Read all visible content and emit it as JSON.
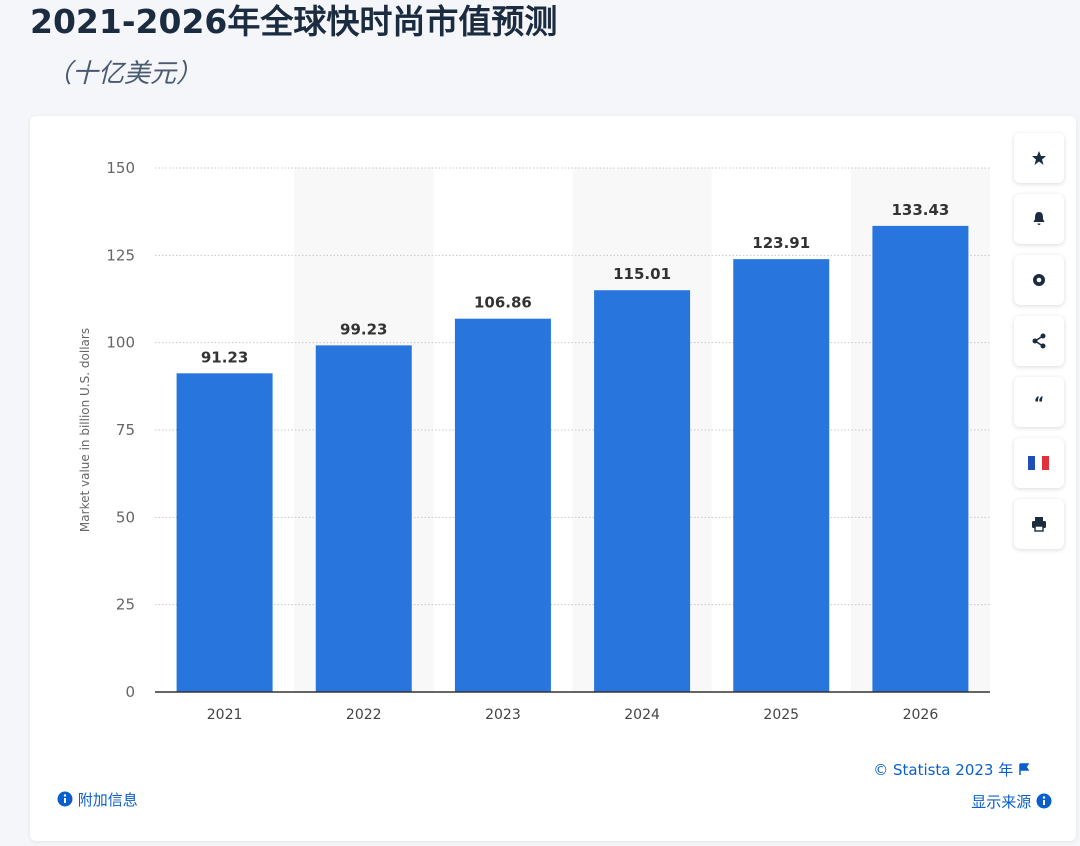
{
  "chart_data": {
    "type": "bar",
    "title": "2021-2026年全球快时尚市值预测",
    "subtitle": "（十亿美元）",
    "y_label": "Market value in billion U.S. dollars",
    "categories": [
      "2021",
      "2022",
      "2023",
      "2024",
      "2025",
      "2026"
    ],
    "values": [
      91.23,
      99.23,
      106.86,
      115.01,
      123.91,
      133.43
    ],
    "color": "#2876dd",
    "ylim": [
      0,
      150
    ],
    "yticks": [
      0,
      25,
      50,
      75,
      100,
      125,
      150
    ],
    "grid": true,
    "source": "© Statista 2023 年",
    "additional_info": "附加信息",
    "show_source": "显示来源"
  }
}
